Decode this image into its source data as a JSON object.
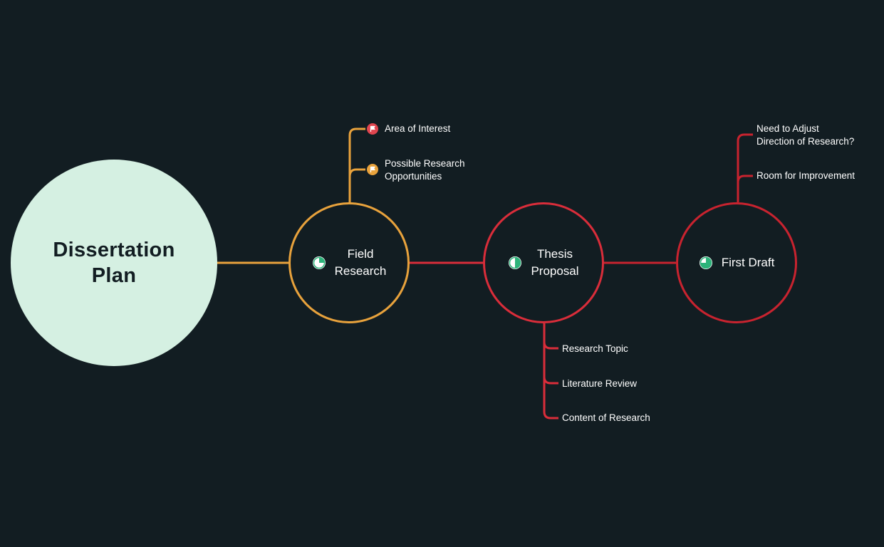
{
  "colors": {
    "background": "#121d22",
    "root_fill": "#d5f0e2",
    "root_text": "#121d22",
    "field_branch": "#e8a23c",
    "thesis_branch": "#d92d3a",
    "draft_branch": "#c8232f",
    "progress_fill": "#2db37a",
    "flag_red": "#e0454f",
    "flag_orange": "#e8a23c"
  },
  "root": {
    "title": "Dissertation\nPlan"
  },
  "nodes": {
    "field": {
      "label": "Field\nResearch",
      "icon": "progress-quarter-icon",
      "progress": 0.25,
      "children": [
        {
          "label": "Area of Interest",
          "icon": "flag-icon",
          "icon_color": "red"
        },
        {
          "label": "Possible Research\nOpportunities",
          "icon": "flag-icon",
          "icon_color": "orange"
        }
      ]
    },
    "thesis": {
      "label": "Thesis\nProposal",
      "icon": "progress-half-icon",
      "progress": 0.5,
      "children": [
        {
          "label": "Research Topic"
        },
        {
          "label": "Literature Review"
        },
        {
          "label": "Content of Research"
        }
      ]
    },
    "draft": {
      "label": "First Draft",
      "icon": "progress-three-quarter-icon",
      "progress": 0.75,
      "children": [
        {
          "label": "Need to Adjust\nDirection of Research?"
        },
        {
          "label": "Room for Improvement"
        }
      ]
    }
  }
}
